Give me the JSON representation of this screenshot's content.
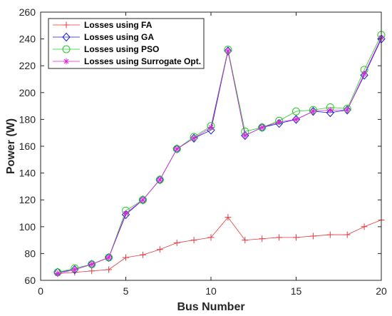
{
  "chart_data": {
    "type": "line",
    "title": "",
    "xlabel": "Bus Number",
    "ylabel": "Power (W)",
    "xlim": [
      0,
      20
    ],
    "ylim": [
      60,
      260
    ],
    "xticks": [
      0,
      5,
      10,
      15,
      20
    ],
    "yticks": [
      60,
      80,
      100,
      120,
      140,
      160,
      180,
      200,
      220,
      240,
      260
    ],
    "grid": false,
    "legend_position": "top-left",
    "x": [
      1,
      2,
      3,
      4,
      5,
      6,
      7,
      8,
      9,
      10,
      11,
      12,
      13,
      14,
      15,
      16,
      17,
      18,
      19,
      20
    ],
    "series": [
      {
        "name": "Losses using FA",
        "color": "#e8383c",
        "marker": "plus",
        "values": [
          65,
          66,
          67,
          68,
          77,
          79,
          83,
          88,
          90,
          92,
          107,
          90,
          91,
          92,
          92,
          93,
          94,
          94,
          100,
          105
        ]
      },
      {
        "name": "Losses using GA",
        "color": "#1a1adb",
        "marker": "diamond",
        "values": [
          66,
          68,
          72,
          77,
          109,
          120,
          135,
          158,
          166,
          172,
          231,
          168,
          174,
          177,
          180,
          186,
          185,
          187,
          213,
          240
        ]
      },
      {
        "name": "Losses using PSO",
        "color": "#22cc22",
        "marker": "circle",
        "values": [
          66,
          69,
          72,
          77,
          112,
          120,
          135,
          158,
          167,
          175,
          232,
          171,
          174,
          179,
          186,
          187,
          189,
          188,
          217,
          243
        ]
      },
      {
        "name": "Losses using Surrogate Opt.",
        "color": "#e020e0",
        "marker": "asterisk",
        "values": [
          65,
          68,
          72,
          77,
          110,
          120,
          135,
          158,
          166,
          174,
          231,
          168,
          174,
          178,
          180,
          186,
          187,
          187,
          214,
          241
        ]
      }
    ]
  }
}
